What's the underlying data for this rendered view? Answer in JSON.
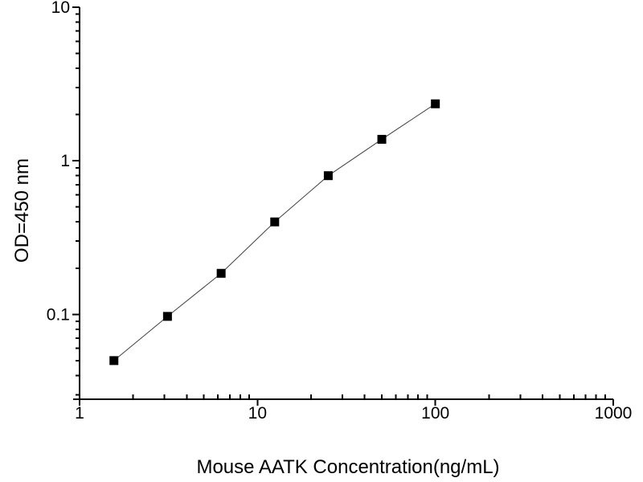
{
  "page": {
    "background": "#ffffff"
  },
  "chart_data": {
    "type": "line",
    "marker": "filled-square",
    "x": [
      1.56,
      3.12,
      6.25,
      12.5,
      25,
      50,
      100
    ],
    "y": [
      0.05,
      0.097,
      0.185,
      0.4,
      0.8,
      1.38,
      2.35
    ],
    "xlabel": "Mouse AATK Concentration(ng/mL)",
    "ylabel": "OD=450 nm",
    "xscale": "log",
    "yscale": "log",
    "xlim": [
      1,
      1000
    ],
    "ylim": [
      0.028,
      10
    ],
    "x_tick_values": [
      1,
      10,
      100,
      1000
    ],
    "x_tick_labels": [
      "1",
      "10",
      "100",
      "1000"
    ],
    "y_tick_values": [
      10,
      1,
      0.1
    ],
    "y_tick_labels": [
      "10",
      "1",
      "0.1"
    ],
    "grid": false,
    "legend": false,
    "marker_color": "#000000",
    "line_color": "#404040",
    "axis_color": "#000000",
    "text_color": "#000000",
    "tick_font_px": 21,
    "title_font_px": 24
  }
}
